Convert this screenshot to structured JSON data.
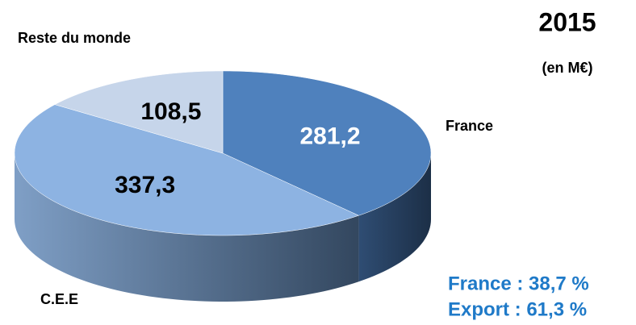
{
  "chart_data": {
    "type": "pie",
    "title": "2015",
    "subtitle": "(en M€)",
    "categories": [
      "France",
      "C.E.E",
      "Reste du monde"
    ],
    "values": [
      281.2,
      337.3,
      108.5
    ],
    "value_labels": [
      "281,2",
      "337,3",
      "108,5"
    ],
    "colors": [
      "#4f81bd",
      "#8db3e2",
      "#c6d5ea"
    ],
    "annotations": [
      "France : 38,7 %",
      "Export : 61,3 %"
    ]
  }
}
